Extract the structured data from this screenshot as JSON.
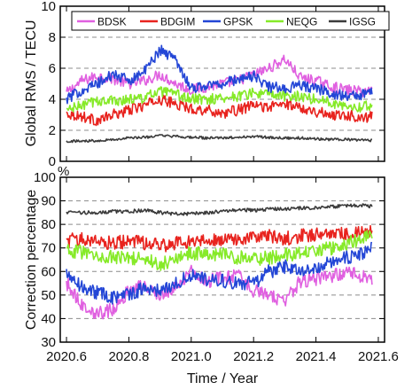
{
  "chart_data": [
    {
      "type": "line",
      "ylabel": "Global RMS / TECU",
      "xlim": [
        2020.58,
        2021.62
      ],
      "ylim": [
        0,
        10
      ],
      "yticks": [
        "0",
        "2",
        "4",
        "6",
        "8",
        "10"
      ],
      "xticks": [
        "2020.6",
        "2020.8",
        "2021.0",
        "2021.2",
        "2021.4",
        "2021.6"
      ],
      "grid": "dashed horizontal lines at 2, 4, 6, 8",
      "legend_position": "top",
      "x": [
        2020.6,
        2020.65,
        2020.7,
        2020.75,
        2020.8,
        2020.85,
        2020.9,
        2020.95,
        2021.0,
        2021.05,
        2021.1,
        2021.15,
        2021.2,
        2021.25,
        2021.3,
        2021.35,
        2021.4,
        2021.45,
        2021.5,
        2021.55,
        2021.58
      ],
      "series": [
        {
          "name": "BDSK",
          "color": "#e060e0",
          "values": [
            4.4,
            5.2,
            5.5,
            5.3,
            5.0,
            5.2,
            5.6,
            5.0,
            4.6,
            4.8,
            5.0,
            5.2,
            5.6,
            6.0,
            6.6,
            5.4,
            5.2,
            4.8,
            4.6,
            4.5,
            4.6
          ]
        },
        {
          "name": "BDGIM",
          "color": "#e8231e",
          "values": [
            3.1,
            2.9,
            2.6,
            3.0,
            3.3,
            3.6,
            4.0,
            3.7,
            3.4,
            3.3,
            3.1,
            3.3,
            3.6,
            3.5,
            3.7,
            3.5,
            3.2,
            3.0,
            3.0,
            2.8,
            2.9
          ]
        },
        {
          "name": "GPSK",
          "color": "#2346d6",
          "values": [
            4.0,
            4.6,
            5.0,
            5.6,
            5.2,
            5.8,
            7.2,
            6.6,
            4.7,
            4.9,
            5.0,
            5.3,
            5.5,
            4.8,
            4.7,
            4.9,
            4.7,
            4.4,
            4.2,
            4.3,
            4.5
          ]
        },
        {
          "name": "NEQG",
          "color": "#86ea28",
          "values": [
            3.3,
            3.6,
            3.9,
            3.9,
            4.0,
            4.1,
            4.5,
            4.3,
            4.0,
            4.0,
            4.1,
            4.2,
            4.4,
            4.3,
            4.2,
            4.2,
            4.0,
            3.8,
            3.6,
            3.5,
            3.6
          ]
        },
        {
          "name": "IGSG",
          "color": "#3b3b3b",
          "values": [
            1.3,
            1.3,
            1.35,
            1.4,
            1.5,
            1.55,
            1.65,
            1.6,
            1.55,
            1.5,
            1.5,
            1.55,
            1.6,
            1.55,
            1.5,
            1.5,
            1.45,
            1.4,
            1.4,
            1.35,
            1.35
          ]
        }
      ]
    },
    {
      "type": "line",
      "ylabel": "Correction percentage",
      "unit_label": "%",
      "xlabel": "Time / Year",
      "xlim": [
        2020.58,
        2021.62
      ],
      "ylim": [
        30,
        100
      ],
      "yticks": [
        "30",
        "40",
        "50",
        "60",
        "70",
        "80",
        "90",
        "100"
      ],
      "xticks": [
        "2020.6",
        "2020.8",
        "2021.0",
        "2021.2",
        "2021.4",
        "2021.6"
      ],
      "grid": "dashed horizontal lines at 40, 50, 60, 70, 80, 90",
      "x": [
        2020.6,
        2020.65,
        2020.7,
        2020.75,
        2020.8,
        2020.85,
        2020.9,
        2020.95,
        2021.0,
        2021.05,
        2021.1,
        2021.15,
        2021.2,
        2021.25,
        2021.3,
        2021.35,
        2021.4,
        2021.45,
        2021.5,
        2021.55,
        2021.58
      ],
      "series": [
        {
          "name": "BDSK",
          "color": "#e060e0",
          "values": [
            55,
            46,
            42,
            44,
            52,
            54,
            50,
            53,
            60,
            56,
            57,
            58,
            52,
            50,
            47,
            56,
            57,
            58,
            60,
            58,
            56
          ]
        },
        {
          "name": "BDGIM",
          "color": "#e8231e",
          "values": [
            73,
            74,
            73,
            72,
            73,
            72,
            71,
            72,
            73,
            73,
            74,
            74,
            74,
            75,
            74,
            75,
            76,
            76,
            76,
            76,
            77
          ]
        },
        {
          "name": "GPSK",
          "color": "#2346d6",
          "values": [
            60,
            53,
            51,
            49,
            50,
            53,
            52,
            55,
            58,
            57,
            56,
            55,
            55,
            60,
            62,
            60,
            62,
            64,
            66,
            68,
            70
          ]
        },
        {
          "name": "NEQG",
          "color": "#86ea28",
          "values": [
            69,
            68,
            67,
            66,
            66,
            65,
            63,
            65,
            68,
            67,
            67,
            66,
            65,
            66,
            67,
            68,
            69,
            70,
            72,
            74,
            76
          ]
        },
        {
          "name": "IGSG",
          "color": "#3b3b3b",
          "values": [
            85,
            85,
            85,
            85.5,
            85.5,
            86,
            85,
            84.5,
            84.5,
            85,
            85.5,
            86,
            86,
            86.5,
            86.5,
            87,
            87,
            87.5,
            88,
            88,
            87.5
          ]
        }
      ]
    }
  ]
}
